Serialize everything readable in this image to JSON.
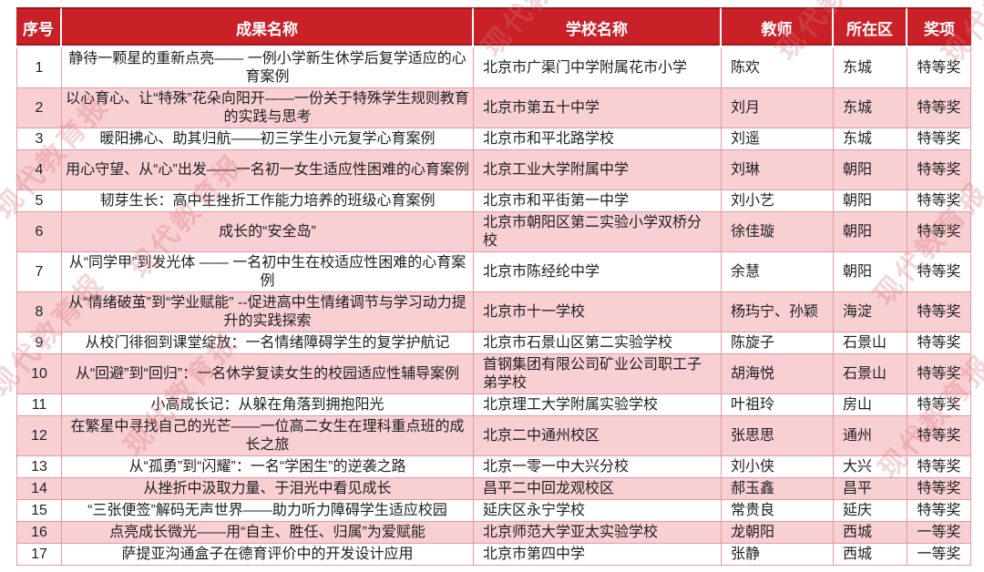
{
  "watermark": {
    "text": "现代教育报"
  },
  "colors": {
    "header_bg": "#ca2128",
    "header_dark_line": "#a1141a",
    "header_text": "#ffffff",
    "row_pink": "#f8cfd3",
    "row_white": "#ffffff",
    "border_pink": "#e59aa1",
    "body_text": "#1f1f1f"
  },
  "table": {
    "columns": [
      {
        "key": "index",
        "label": "序号"
      },
      {
        "key": "achievement",
        "label": "成果名称"
      },
      {
        "key": "school",
        "label": "学校名称"
      },
      {
        "key": "teacher",
        "label": "教师"
      },
      {
        "key": "district",
        "label": "所在区"
      },
      {
        "key": "award",
        "label": "奖项"
      }
    ],
    "rows": [
      {
        "index": "1",
        "achievement": "静待一颗星的重新点亮—— 一例小学新生休学后复学适应的心育案例",
        "school": "北京市广渠门中学附属花市小学",
        "teacher": "陈欢",
        "district": "东城",
        "award": "特等奖"
      },
      {
        "index": "2",
        "achievement": "以心育心、让“特殊”花朵向阳开——一份关于特殊学生规则教育的实践与思考",
        "school": "北京市第五十中学",
        "teacher": "刘月",
        "district": "东城",
        "award": "特等奖"
      },
      {
        "index": "3",
        "achievement": "暖阳拂心、助其归航——初三学生小元复学心育案例",
        "school": "北京市和平北路学校",
        "teacher": "刘遥",
        "district": "东城",
        "award": "特等奖"
      },
      {
        "index": "4",
        "achievement": "用心守望、从“心”出发——一名初一女生适应性困难的心育案例",
        "school": "北京工业大学附属中学",
        "teacher": "刘琳",
        "district": "朝阳",
        "award": "特等奖"
      },
      {
        "index": "5",
        "achievement": "韧芽生长：高中生挫折工作能力培养的班级心育案例",
        "school": "北京市和平街第一中学",
        "teacher": "刘小艺",
        "district": "朝阳",
        "award": "特等奖"
      },
      {
        "index": "6",
        "achievement": "成长的“安全岛”",
        "school": "北京市朝阳区第二实验小学双桥分校",
        "teacher": "徐佳璇",
        "district": "朝阳",
        "award": "特等奖"
      },
      {
        "index": "7",
        "achievement": "从“同学甲”到发光体 —— 一名初中生在校适应性困难的心育案例",
        "school": "北京市陈经纶中学",
        "teacher": "余慧",
        "district": "朝阳",
        "award": "特等奖"
      },
      {
        "index": "8",
        "achievement": "从“情绪破茧”到“学业赋能” --促进高中生情绪调节与学习动力提升的实践探索",
        "school": "北京市十一学校",
        "teacher": "杨玙宁、孙颖",
        "district": "海淀",
        "award": "特等奖"
      },
      {
        "index": "9",
        "achievement": "从校门徘徊到课堂绽放：一名情绪障碍学生的复学护航记",
        "school": "北京市石景山区第二实验学校",
        "teacher": "陈旋子",
        "district": "石景山",
        "award": "特等奖"
      },
      {
        "index": "10",
        "achievement": "从“回避”到“回归”：一名休学复读女生的校园适应性辅导案例",
        "school": "首钢集团有限公司矿业公司职工子弟学校",
        "teacher": "胡海悦",
        "district": "石景山",
        "award": "特等奖"
      },
      {
        "index": "11",
        "achievement": "小高成长记：从躲在角落到拥抱阳光",
        "school": "北京理工大学附属实验学校",
        "teacher": "叶祖玲",
        "district": "房山",
        "award": "特等奖"
      },
      {
        "index": "12",
        "achievement": "在繁星中寻找自己的光芒——一位高二女生在理科重点班的成长之旅",
        "school": "北京二中通州校区",
        "teacher": "张思思",
        "district": "通州",
        "award": "特等奖"
      },
      {
        "index": "13",
        "achievement": "从“孤勇”到“闪耀”：一名“学困生”的逆袭之路",
        "school": "北京一零一中大兴分校",
        "teacher": "刘小侠",
        "district": "大兴",
        "award": "特等奖"
      },
      {
        "index": "14",
        "achievement": "从挫折中汲取力量、于泪光中看见成长",
        "school": "昌平二中回龙观校区",
        "teacher": "郝玉鑫",
        "district": "昌平",
        "award": "特等奖"
      },
      {
        "index": "15",
        "achievement": "“三张便签”解码无声世界——助力听力障碍学生适应校园",
        "school": "延庆区永宁学校",
        "teacher": "常贵良",
        "district": "延庆",
        "award": "特等奖"
      },
      {
        "index": "16",
        "achievement": "点亮成长微光——用“自主、胜任、归属”为爱赋能",
        "school": "北京师范大学亚太实验学校",
        "teacher": "龙朝阳",
        "district": "西城",
        "award": "一等奖"
      },
      {
        "index": "17",
        "achievement": "萨提亚沟通盒子在德育评价中的开发设计应用",
        "school": "北京市第四中学",
        "teacher": "张静",
        "district": "西城",
        "award": "一等奖"
      }
    ]
  }
}
